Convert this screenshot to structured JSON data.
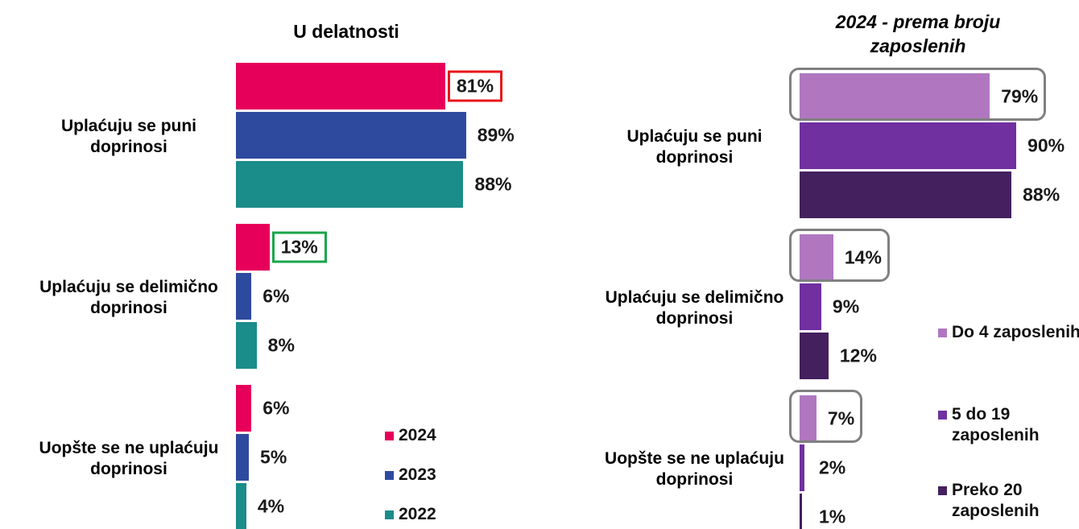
{
  "chart_data": [
    {
      "type": "bar",
      "orientation": "horizontal",
      "title": "U delatnosti",
      "categories": [
        "Uplaćuju se puni doprinosi",
        "Uplaćuju se delimično doprinosi",
        "Uopšte se ne uplaćuju doprinosi"
      ],
      "xlim": [
        0,
        100
      ],
      "series": [
        {
          "name": "2024",
          "color": "#e6005a",
          "values": [
            81,
            13,
            6
          ],
          "value_labels": [
            "81%",
            "13%",
            "6%"
          ],
          "label_box_colors": [
            "#e8141a",
            "#1aa64a",
            null
          ]
        },
        {
          "name": "2023",
          "color": "#2e4a9e",
          "values": [
            89,
            6,
            5
          ],
          "value_labels": [
            "89%",
            "6%",
            "5%"
          ]
        },
        {
          "name": "2022",
          "color": "#1a8c8a",
          "values": [
            88,
            8,
            4
          ],
          "value_labels": [
            "88%",
            "8%",
            "4%"
          ]
        }
      ]
    },
    {
      "type": "bar",
      "orientation": "horizontal",
      "title": "2024 - prema broju zaposlenih",
      "categories": [
        "Uplaćuju se puni doprinosi",
        "Uplaćuju se delimično doprinosi",
        "Uopšte se ne uplaćuju doprinosi"
      ],
      "xlim": [
        0,
        100
      ],
      "series": [
        {
          "name": "Do 4 zaposlenih",
          "color": "#b077c0",
          "values": [
            79,
            14,
            7
          ],
          "value_labels": [
            "79%",
            "14%",
            "7%"
          ],
          "bar_box_color": "#808080"
        },
        {
          "name": "5 do 19 zaposlenih",
          "color": "#7030a0",
          "values": [
            90,
            9,
            2
          ],
          "value_labels": [
            "90%",
            "9%",
            "2%"
          ]
        },
        {
          "name": "Preko 20 zaposlenih",
          "color": "#44205e",
          "values": [
            88,
            12,
            1
          ],
          "value_labels": [
            "88%",
            "12%",
            "1%"
          ]
        }
      ]
    }
  ]
}
